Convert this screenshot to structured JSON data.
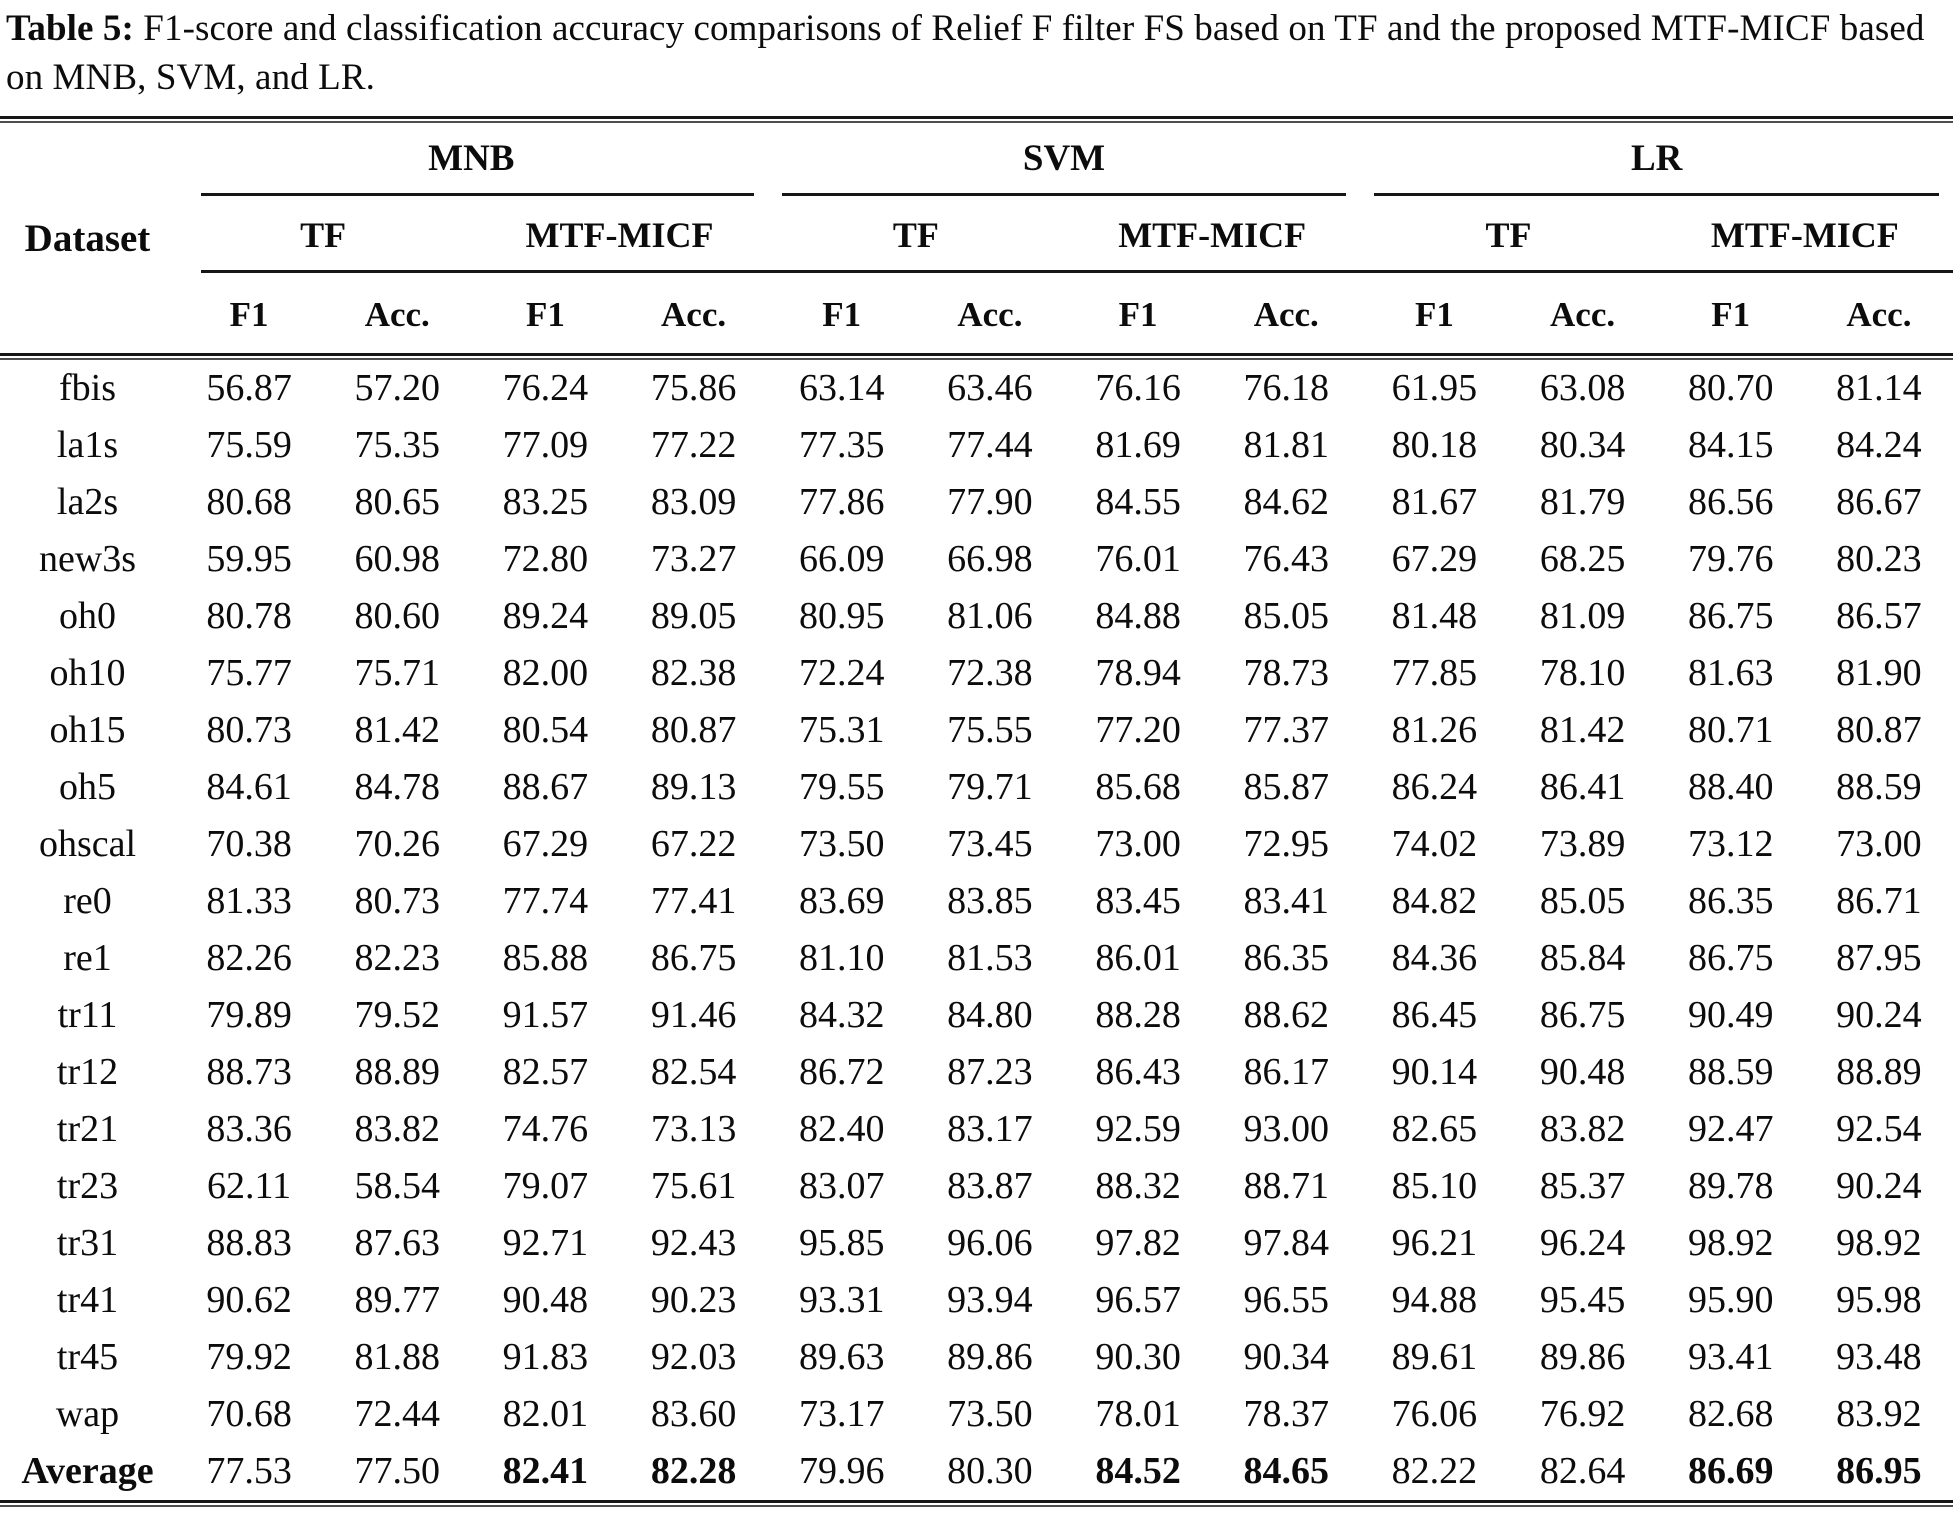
{
  "title": {
    "label": "Table 5:",
    "text": "F1-score and classification accuracy comparisons of Relief F filter FS based on TF and the proposed MTF-MICF based on MNB, SVM, and LR."
  },
  "table": {
    "dataset_header": "Dataset",
    "groups": [
      {
        "label": "MNB"
      },
      {
        "label": "SVM"
      },
      {
        "label": "LR"
      }
    ],
    "subgroups": [
      "TF",
      "MTF-MICF",
      "TF",
      "MTF-MICF",
      "TF",
      "MTF-MICF"
    ],
    "metrics": [
      "F1",
      "Acc.",
      "F1",
      "Acc.",
      "F1",
      "Acc.",
      "F1",
      "Acc.",
      "F1",
      "Acc.",
      "F1",
      "Acc."
    ],
    "rows": [
      {
        "dataset": "fbis",
        "values": [
          "56.87",
          "57.20",
          "76.24",
          "75.86",
          "63.14",
          "63.46",
          "76.16",
          "76.18",
          "61.95",
          "63.08",
          "80.70",
          "81.14"
        ]
      },
      {
        "dataset": "la1s",
        "values": [
          "75.59",
          "75.35",
          "77.09",
          "77.22",
          "77.35",
          "77.44",
          "81.69",
          "81.81",
          "80.18",
          "80.34",
          "84.15",
          "84.24"
        ]
      },
      {
        "dataset": "la2s",
        "values": [
          "80.68",
          "80.65",
          "83.25",
          "83.09",
          "77.86",
          "77.90",
          "84.55",
          "84.62",
          "81.67",
          "81.79",
          "86.56",
          "86.67"
        ]
      },
      {
        "dataset": "new3s",
        "values": [
          "59.95",
          "60.98",
          "72.80",
          "73.27",
          "66.09",
          "66.98",
          "76.01",
          "76.43",
          "67.29",
          "68.25",
          "79.76",
          "80.23"
        ]
      },
      {
        "dataset": "oh0",
        "values": [
          "80.78",
          "80.60",
          "89.24",
          "89.05",
          "80.95",
          "81.06",
          "84.88",
          "85.05",
          "81.48",
          "81.09",
          "86.75",
          "86.57"
        ]
      },
      {
        "dataset": "oh10",
        "values": [
          "75.77",
          "75.71",
          "82.00",
          "82.38",
          "72.24",
          "72.38",
          "78.94",
          "78.73",
          "77.85",
          "78.10",
          "81.63",
          "81.90"
        ]
      },
      {
        "dataset": "oh15",
        "values": [
          "80.73",
          "81.42",
          "80.54",
          "80.87",
          "75.31",
          "75.55",
          "77.20",
          "77.37",
          "81.26",
          "81.42",
          "80.71",
          "80.87"
        ]
      },
      {
        "dataset": "oh5",
        "values": [
          "84.61",
          "84.78",
          "88.67",
          "89.13",
          "79.55",
          "79.71",
          "85.68",
          "85.87",
          "86.24",
          "86.41",
          "88.40",
          "88.59"
        ]
      },
      {
        "dataset": "ohscal",
        "values": [
          "70.38",
          "70.26",
          "67.29",
          "67.22",
          "73.50",
          "73.45",
          "73.00",
          "72.95",
          "74.02",
          "73.89",
          "73.12",
          "73.00"
        ]
      },
      {
        "dataset": "re0",
        "values": [
          "81.33",
          "80.73",
          "77.74",
          "77.41",
          "83.69",
          "83.85",
          "83.45",
          "83.41",
          "84.82",
          "85.05",
          "86.35",
          "86.71"
        ]
      },
      {
        "dataset": "re1",
        "values": [
          "82.26",
          "82.23",
          "85.88",
          "86.75",
          "81.10",
          "81.53",
          "86.01",
          "86.35",
          "84.36",
          "85.84",
          "86.75",
          "87.95"
        ]
      },
      {
        "dataset": "tr11",
        "values": [
          "79.89",
          "79.52",
          "91.57",
          "91.46",
          "84.32",
          "84.80",
          "88.28",
          "88.62",
          "86.45",
          "86.75",
          "90.49",
          "90.24"
        ]
      },
      {
        "dataset": "tr12",
        "values": [
          "88.73",
          "88.89",
          "82.57",
          "82.54",
          "86.72",
          "87.23",
          "86.43",
          "86.17",
          "90.14",
          "90.48",
          "88.59",
          "88.89"
        ]
      },
      {
        "dataset": "tr21",
        "values": [
          "83.36",
          "83.82",
          "74.76",
          "73.13",
          "82.40",
          "83.17",
          "92.59",
          "93.00",
          "82.65",
          "83.82",
          "92.47",
          "92.54"
        ]
      },
      {
        "dataset": "tr23",
        "values": [
          "62.11",
          "58.54",
          "79.07",
          "75.61",
          "83.07",
          "83.87",
          "88.32",
          "88.71",
          "85.10",
          "85.37",
          "89.78",
          "90.24"
        ]
      },
      {
        "dataset": "tr31",
        "values": [
          "88.83",
          "87.63",
          "92.71",
          "92.43",
          "95.85",
          "96.06",
          "97.82",
          "97.84",
          "96.21",
          "96.24",
          "98.92",
          "98.92"
        ]
      },
      {
        "dataset": "tr41",
        "values": [
          "90.62",
          "89.77",
          "90.48",
          "90.23",
          "93.31",
          "93.94",
          "96.57",
          "96.55",
          "94.88",
          "95.45",
          "95.90",
          "95.98"
        ]
      },
      {
        "dataset": "tr45",
        "values": [
          "79.92",
          "81.88",
          "91.83",
          "92.03",
          "89.63",
          "89.86",
          "90.30",
          "90.34",
          "89.61",
          "89.86",
          "93.41",
          "93.48"
        ]
      },
      {
        "dataset": "wap",
        "values": [
          "70.68",
          "72.44",
          "82.01",
          "83.60",
          "73.17",
          "73.50",
          "78.01",
          "78.37",
          "76.06",
          "76.92",
          "82.68",
          "83.92"
        ]
      },
      {
        "dataset": "Average",
        "values": [
          "77.53",
          "77.50",
          "82.41",
          "82.28",
          "79.96",
          "80.30",
          "84.52",
          "84.65",
          "82.22",
          "82.64",
          "86.69",
          "86.95"
        ],
        "is_average": true,
        "bold_value_indices": [
          2,
          3,
          6,
          7,
          10,
          11
        ]
      }
    ]
  }
}
